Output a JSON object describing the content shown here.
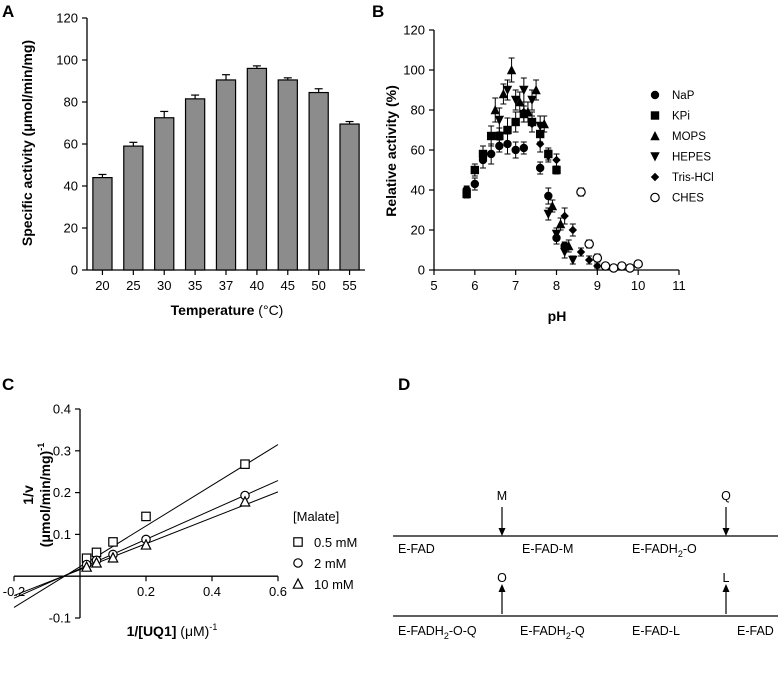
{
  "chart_data": [
    {
      "panel": "A",
      "type": "bar",
      "xlabel_bold": "Temperature",
      "xlabel_unit": " (°C)",
      "ylabel": "Specific activity (μmol/min/mg)",
      "categories": [
        "20",
        "25",
        "30",
        "35",
        "37",
        "40",
        "45",
        "50",
        "55"
      ],
      "values": [
        44,
        59,
        72.5,
        81.5,
        90.5,
        96,
        90.5,
        84.5,
        69.5
      ],
      "errors": [
        1.5,
        1.8,
        3,
        1.8,
        2.5,
        1.2,
        1.0,
        1.8,
        1.2
      ],
      "ylim": [
        0,
        120
      ],
      "yticks": [
        0,
        20,
        40,
        60,
        80,
        100,
        120
      ],
      "bar_color": "#8c8c8c"
    },
    {
      "panel": "B",
      "type": "scatter",
      "xlabel": "pH",
      "ylabel": "Relative activity (%)",
      "xlim": [
        5,
        11
      ],
      "ylim": [
        0,
        120
      ],
      "xticks": [
        5,
        6,
        7,
        8,
        9,
        10,
        11
      ],
      "yticks": [
        0,
        20,
        40,
        60,
        80,
        100,
        120
      ],
      "series": [
        {
          "name": "NaP",
          "marker": "circle",
          "points": [
            [
              5.8,
              40
            ],
            [
              6.0,
              43
            ],
            [
              6.2,
              55
            ],
            [
              6.4,
              58
            ],
            [
              6.6,
              62
            ],
            [
              6.8,
              63
            ],
            [
              7.0,
              60
            ],
            [
              7.2,
              61
            ],
            [
              7.6,
              51
            ],
            [
              7.8,
              37
            ],
            [
              8.0,
              16
            ],
            [
              8.2,
              12
            ]
          ],
          "errors": [
            2,
            3,
            4,
            5,
            3,
            5,
            4,
            3,
            3,
            4,
            3,
            2
          ]
        },
        {
          "name": "KPi",
          "marker": "square",
          "points": [
            [
              5.8,
              38
            ],
            [
              6.0,
              50
            ],
            [
              6.2,
              58
            ],
            [
              6.4,
              67
            ],
            [
              6.6,
              67
            ],
            [
              6.8,
              70
            ],
            [
              7.0,
              74
            ],
            [
              7.2,
              78
            ],
            [
              7.4,
              74
            ],
            [
              7.6,
              68
            ],
            [
              7.8,
              58
            ],
            [
              8.0,
              50
            ]
          ],
          "errors": [
            2,
            3,
            4,
            5,
            4,
            6,
            5,
            4,
            5,
            4,
            3,
            2
          ]
        },
        {
          "name": "MOPS",
          "marker": "triangle-up",
          "points": [
            [
              6.5,
              80
            ],
            [
              6.7,
              88
            ],
            [
              6.9,
              100
            ],
            [
              7.1,
              84
            ],
            [
              7.3,
              79
            ],
            [
              7.5,
              90
            ],
            [
              7.7,
              73
            ],
            [
              7.9,
              32
            ],
            [
              8.1,
              23
            ],
            [
              8.3,
              12
            ]
          ],
          "errors": [
            6,
            5,
            6,
            5,
            5,
            5,
            4,
            3,
            3,
            3
          ]
        },
        {
          "name": "HEPES",
          "marker": "triangle-down",
          "points": [
            [
              6.6,
              75
            ],
            [
              6.8,
              90
            ],
            [
              7.0,
              85
            ],
            [
              7.2,
              90
            ],
            [
              7.4,
              85
            ],
            [
              7.6,
              72
            ],
            [
              7.8,
              28
            ],
            [
              8.0,
              18
            ],
            [
              8.2,
              9
            ],
            [
              8.4,
              5
            ]
          ],
          "errors": [
            6,
            5,
            5,
            6,
            5,
            5,
            3,
            3,
            3,
            2
          ]
        },
        {
          "name": "Tris-HCl",
          "marker": "diamond",
          "points": [
            [
              7.2,
              79
            ],
            [
              7.4,
              73
            ],
            [
              7.6,
              63
            ],
            [
              7.8,
              57
            ],
            [
              8.0,
              55
            ],
            [
              8.2,
              27
            ],
            [
              8.4,
              20
            ],
            [
              8.6,
              9
            ],
            [
              8.8,
              5
            ],
            [
              9.0,
              2
            ]
          ],
          "errors": [
            5,
            4,
            4,
            3,
            3,
            4,
            3,
            2,
            2,
            1
          ]
        },
        {
          "name": "CHES",
          "marker": "circle-open",
          "points": [
            [
              8.6,
              39
            ],
            [
              8.8,
              13
            ],
            [
              9.0,
              6
            ],
            [
              9.2,
              2
            ],
            [
              9.4,
              1
            ],
            [
              9.6,
              2
            ],
            [
              9.8,
              1
            ],
            [
              10.0,
              3
            ]
          ],
          "errors": [
            2,
            2,
            2,
            1,
            1,
            1,
            1,
            1
          ]
        }
      ]
    },
    {
      "panel": "C",
      "type": "scatter",
      "title_legend": "[Malate]",
      "xlabel_bold": "1/[UQ1]",
      "xlabel_unit": " (μM)",
      "xlabel_sup": "-1",
      "ylabel_bold": "1/v",
      "ylabel_unit": "(μmol/min/mg)",
      "ylabel_sup": "-1",
      "xlim": [
        -0.2,
        0.6
      ],
      "ylim": [
        -0.1,
        0.4
      ],
      "xticks": [
        -0.2,
        0.2,
        0.4,
        0.6
      ],
      "xtick_labels": [
        "-0.2",
        "0.2",
        "0.4",
        "0.6"
      ],
      "yticks": [
        -0.1,
        0.1,
        0.2,
        0.3,
        0.4
      ],
      "ytick_labels": [
        "-0.1",
        "0.1",
        "0.2",
        "0.3",
        "0.4"
      ],
      "series": [
        {
          "name": "0.5 mM",
          "marker": "square-open",
          "x": [
            0.02,
            0.05,
            0.1,
            0.2,
            0.5
          ],
          "y": [
            0.043,
            0.057,
            0.082,
            0.143,
            0.268
          ],
          "fit": [
            0.0227,
            0.487
          ]
        },
        {
          "name": "2 mM",
          "marker": "circle-open",
          "x": [
            0.02,
            0.05,
            0.1,
            0.2,
            0.5
          ],
          "y": [
            0.028,
            0.038,
            0.052,
            0.088,
            0.193
          ],
          "fit": [
            0.0177,
            0.352
          ]
        },
        {
          "name": "10 mM",
          "marker": "triangle-open",
          "x": [
            0.02,
            0.05,
            0.1,
            0.2,
            0.5
          ],
          "y": [
            0.022,
            0.032,
            0.044,
            0.075,
            0.178
          ],
          "fit": [
            0.0157,
            0.31
          ]
        }
      ]
    }
  ],
  "panel_labels": {
    "a": "A",
    "b": "B",
    "c": "C",
    "d": "D"
  },
  "scheme": {
    "top_inputs": {
      "m": "M",
      "q": "Q"
    },
    "top_species": {
      "e_fad": "E-FAD",
      "e_fad_m": "E-FAD-M",
      "e_fadh2_o_main": "E-FADH",
      "e_fadh2_o_sub": "2",
      "e_fadh2_o_tail": "-O"
    },
    "bottom_outputs": {
      "o": "O",
      "l": "L"
    },
    "bottom_species": {
      "e_fadh2_o_q_main": "E-FADH",
      "e_fadh2_o_q_sub": "2",
      "e_fadh2_o_q_tail": "-O-Q",
      "e_fadh2_q_main": "E-FADH",
      "e_fadh2_q_sub": "2",
      "e_fadh2_q_tail": "-Q",
      "e_fad_l": "E-FAD-L",
      "e_fad_end": "E-FAD"
    }
  }
}
